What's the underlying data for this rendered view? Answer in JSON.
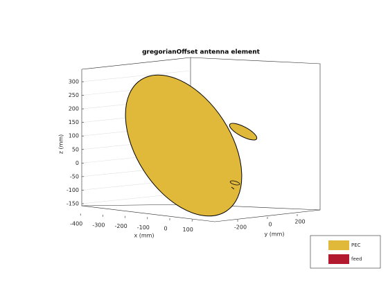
{
  "title": "gregorianOffset antenna element",
  "axes": {
    "x": {
      "label": "x (mm)",
      "ticks": [
        -400,
        -300,
        -200,
        -100,
        0,
        100
      ]
    },
    "y": {
      "label": "y (mm)",
      "ticks": [
        -200,
        0,
        200
      ]
    },
    "z": {
      "label": "z (mm)",
      "ticks": [
        300,
        250,
        200,
        150,
        100,
        50,
        0,
        -50,
        -100,
        -150
      ]
    }
  },
  "legend": [
    {
      "name": "PEC",
      "color": "#e0b83a"
    },
    {
      "name": "feed",
      "color": "#b2192f"
    }
  ]
}
